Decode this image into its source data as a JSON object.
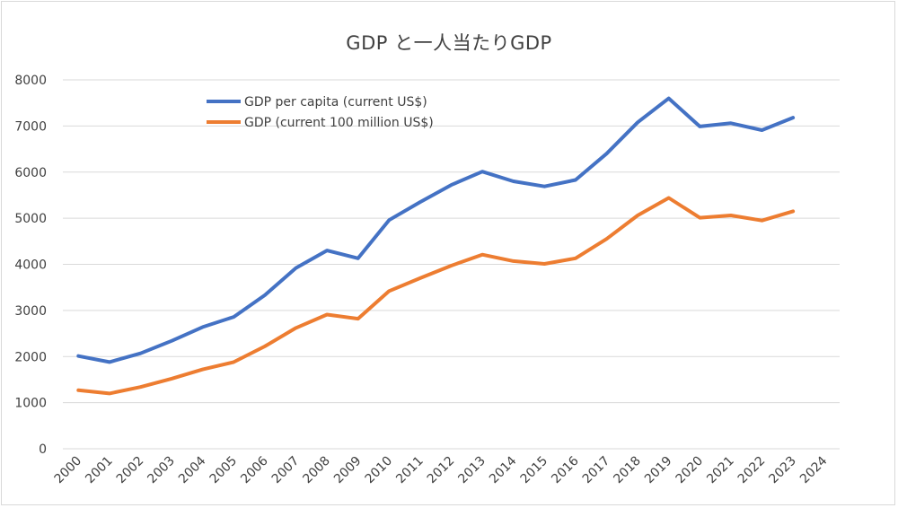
{
  "chart_data": {
    "type": "line",
    "title": "GDP と一人当たりGDP",
    "xlabel": "",
    "ylabel": "",
    "ylim": [
      0,
      8000
    ],
    "yticks": [
      0,
      1000,
      2000,
      3000,
      4000,
      5000,
      6000,
      7000,
      8000
    ],
    "categories": [
      "2000",
      "2001",
      "2002",
      "2003",
      "2004",
      "2005",
      "2006",
      "2007",
      "2008",
      "2009",
      "2010",
      "2011",
      "2012",
      "2013",
      "2014",
      "2015",
      "2016",
      "2017",
      "2018",
      "2019",
      "2020",
      "2021",
      "2022",
      "2023",
      "2024"
    ],
    "grid": true,
    "legend_position": "top-left",
    "series": [
      {
        "name": "GDP per capita (current US$)",
        "color": "#4472C4",
        "values": [
          2010,
          1880,
          2070,
          2340,
          2640,
          2860,
          3330,
          3920,
          4300,
          4130,
          4960,
          5350,
          5720,
          6010,
          5800,
          5690,
          5830,
          6400,
          7080,
          7600,
          6990,
          7060,
          6910,
          7180,
          null
        ]
      },
      {
        "name": "GDP (current 100 million US$)",
        "color": "#ED7D31",
        "values": [
          1270,
          1200,
          1340,
          1520,
          1720,
          1880,
          2220,
          2620,
          2910,
          2820,
          3420,
          3700,
          3970,
          4210,
          4070,
          4010,
          4130,
          4550,
          5060,
          5440,
          5010,
          5060,
          4950,
          5150,
          null
        ]
      }
    ]
  }
}
